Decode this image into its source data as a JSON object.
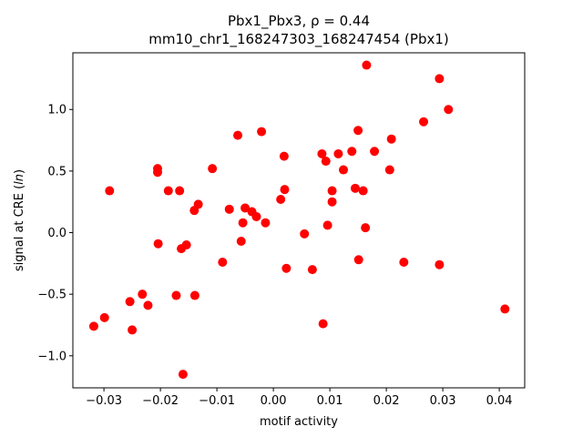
{
  "chart_data": {
    "type": "scatter",
    "title": "Pbx1_Pbx3, ρ = 0.44",
    "subtitle": "mm10_chr1_168247303_168247454 (Pbx1)",
    "xlabel": "motif activity",
    "ylabel": "signal at CRE (ln)",
    "xlim": [
      -0.0355,
      0.0445
    ],
    "ylim": [
      -1.26,
      1.46
    ],
    "xticks": [
      -0.03,
      -0.02,
      -0.01,
      0.0,
      0.01,
      0.02,
      0.03,
      0.04
    ],
    "xtick_labels": [
      "−0.03",
      "−0.02",
      "−0.01",
      "0.00",
      "0.01",
      "0.02",
      "0.03",
      "0.04"
    ],
    "yticks": [
      -1.0,
      -0.5,
      0.0,
      0.5,
      1.0
    ],
    "ytick_labels": [
      "−1.0",
      "−0.5",
      "0.0",
      "0.5",
      "1.0"
    ],
    "grid": false,
    "marker_color": "#ff0000",
    "points": [
      {
        "x": -0.0318,
        "y": -0.76
      },
      {
        "x": -0.0299,
        "y": -0.69
      },
      {
        "x": -0.029,
        "y": 0.34
      },
      {
        "x": -0.0254,
        "y": -0.56
      },
      {
        "x": -0.025,
        "y": -0.79
      },
      {
        "x": -0.0232,
        "y": -0.5
      },
      {
        "x": -0.0222,
        "y": -0.59
      },
      {
        "x": -0.0205,
        "y": 0.52
      },
      {
        "x": -0.0205,
        "y": 0.49
      },
      {
        "x": -0.0204,
        "y": -0.09
      },
      {
        "x": -0.0186,
        "y": 0.34
      },
      {
        "x": -0.0172,
        "y": -0.51
      },
      {
        "x": -0.0166,
        "y": 0.34
      },
      {
        "x": -0.0163,
        "y": -0.13
      },
      {
        "x": -0.016,
        "y": -1.15
      },
      {
        "x": -0.0154,
        "y": -0.1
      },
      {
        "x": -0.014,
        "y": 0.18
      },
      {
        "x": -0.0139,
        "y": -0.51
      },
      {
        "x": -0.0133,
        "y": 0.23
      },
      {
        "x": -0.0108,
        "y": 0.52
      },
      {
        "x": -0.009,
        "y": -0.24
      },
      {
        "x": -0.0078,
        "y": 0.19
      },
      {
        "x": -0.0063,
        "y": 0.79
      },
      {
        "x": -0.0057,
        "y": -0.07
      },
      {
        "x": -0.0054,
        "y": 0.08
      },
      {
        "x": -0.005,
        "y": 0.2
      },
      {
        "x": -0.0038,
        "y": 0.17
      },
      {
        "x": -0.003,
        "y": 0.13
      },
      {
        "x": -0.0021,
        "y": 0.82
      },
      {
        "x": -0.0014,
        "y": 0.08
      },
      {
        "x": 0.0013,
        "y": 0.27
      },
      {
        "x": 0.0019,
        "y": 0.62
      },
      {
        "x": 0.002,
        "y": 0.35
      },
      {
        "x": 0.0023,
        "y": -0.29
      },
      {
        "x": 0.0055,
        "y": -0.01
      },
      {
        "x": 0.0069,
        "y": -0.3
      },
      {
        "x": 0.0086,
        "y": 0.64
      },
      {
        "x": 0.0088,
        "y": -0.74
      },
      {
        "x": 0.0093,
        "y": 0.58
      },
      {
        "x": 0.0096,
        "y": 0.06
      },
      {
        "x": 0.0104,
        "y": 0.34
      },
      {
        "x": 0.0104,
        "y": 0.25
      },
      {
        "x": 0.0115,
        "y": 0.64
      },
      {
        "x": 0.0124,
        "y": 0.51
      },
      {
        "x": 0.0139,
        "y": 0.66
      },
      {
        "x": 0.0145,
        "y": 0.36
      },
      {
        "x": 0.015,
        "y": 0.83
      },
      {
        "x": 0.0151,
        "y": -0.22
      },
      {
        "x": 0.0159,
        "y": 0.34
      },
      {
        "x": 0.0163,
        "y": 0.04
      },
      {
        "x": 0.0165,
        "y": 1.36
      },
      {
        "x": 0.0179,
        "y": 0.66
      },
      {
        "x": 0.0206,
        "y": 0.51
      },
      {
        "x": 0.0209,
        "y": 0.76
      },
      {
        "x": 0.0231,
        "y": -0.24
      },
      {
        "x": 0.0266,
        "y": 0.9
      },
      {
        "x": 0.0294,
        "y": 1.25
      },
      {
        "x": 0.0294,
        "y": -0.26
      },
      {
        "x": 0.031,
        "y": 1.0
      },
      {
        "x": 0.041,
        "y": -0.62
      }
    ]
  }
}
